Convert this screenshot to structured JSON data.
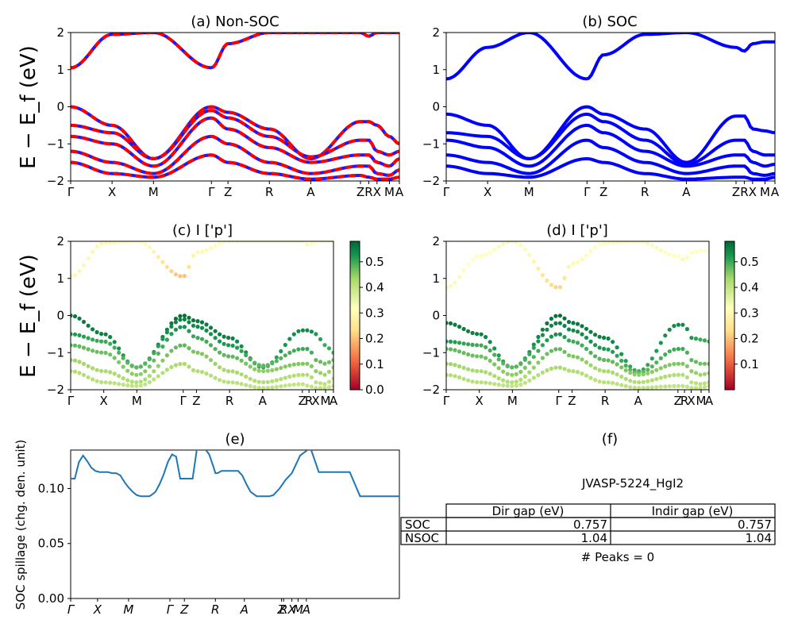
{
  "panels": {
    "a": {
      "title": "(a) Non-SOC"
    },
    "b": {
      "title": "(b) SOC"
    },
    "c": {
      "title": "(c)  I ['p']"
    },
    "d": {
      "title": "(d) I ['p']"
    },
    "e": {
      "title": "(e)"
    },
    "f": {
      "title": "(f)"
    }
  },
  "ylabel_band": "E − E_f (eV)",
  "ylabel_spillage": "SOC spillage (chg. den. unit)",
  "chart_data": [
    {
      "id": "a",
      "type": "line",
      "title": "(a) Non-SOC",
      "ylim": [
        -2,
        2
      ],
      "yticks": [
        "2",
        "1",
        "0",
        "−1",
        "−2"
      ],
      "xticks": [
        "Γ",
        "X",
        "M",
        "Γ",
        "Z",
        "R",
        "A",
        "Z",
        "R",
        "X",
        "M",
        "A"
      ],
      "x": [
        0,
        0.5,
        1.0,
        1.7,
        1.9,
        2.4,
        2.9,
        3.5,
        3.6,
        3.7,
        3.85,
        3.97
      ],
      "colors": {
        "primary": "#ff0000",
        "secondary": "#1a1aff"
      },
      "series": [
        {
          "values": [
            1.05,
            1.95,
            2.0,
            1.05,
            1.7,
            2.0,
            2.0,
            2.0,
            1.9,
            2.0,
            2.0,
            2.0
          ]
        },
        {
          "values": [
            0.0,
            -0.5,
            -1.4,
            0.0,
            -0.15,
            -0.6,
            -1.4,
            -0.4,
            -0.4,
            -0.5,
            -0.8,
            -1.0
          ]
        },
        {
          "values": [
            -0.5,
            -0.7,
            -1.4,
            -0.1,
            -0.3,
            -0.8,
            -1.35,
            -0.9,
            -0.9,
            -1.2,
            -1.3,
            -1.2
          ]
        },
        {
          "values": [
            -0.8,
            -1.0,
            -1.6,
            -0.3,
            -0.6,
            -1.1,
            -1.5,
            -1.3,
            -1.3,
            -1.5,
            -1.6,
            -1.4
          ]
        },
        {
          "values": [
            -1.2,
            -1.5,
            -1.8,
            -0.8,
            -1.0,
            -1.5,
            -1.8,
            -1.6,
            -1.6,
            -1.8,
            -1.85,
            -1.7
          ]
        },
        {
          "values": [
            -1.5,
            -1.8,
            -1.9,
            -1.3,
            -1.5,
            -1.8,
            -1.95,
            -1.85,
            -1.9,
            -1.95,
            -1.95,
            -1.9
          ]
        }
      ]
    },
    {
      "id": "b",
      "type": "line",
      "title": "(b) SOC",
      "ylim": [
        -2,
        2
      ],
      "yticks": [
        "2",
        "1",
        "0",
        "−1",
        "−2"
      ],
      "xticks": [
        "Γ",
        "X",
        "M",
        "Γ",
        "Z",
        "R",
        "A",
        "Z",
        "R",
        "X",
        "M",
        "A"
      ],
      "x": [
        0,
        0.5,
        1.0,
        1.7,
        1.9,
        2.4,
        2.9,
        3.5,
        3.6,
        3.7,
        3.85,
        3.97
      ],
      "colors": {
        "primary": "#0000ff"
      },
      "series": [
        {
          "values": [
            0.75,
            1.6,
            2.0,
            0.75,
            1.4,
            1.95,
            2.0,
            1.6,
            1.5,
            1.7,
            1.75,
            1.75
          ]
        },
        {
          "values": [
            -0.2,
            -0.5,
            -1.4,
            0.0,
            -0.2,
            -0.6,
            -1.5,
            -0.25,
            -0.25,
            -0.6,
            -0.65,
            -0.7
          ]
        },
        {
          "values": [
            -0.7,
            -0.8,
            -1.4,
            -0.2,
            -0.4,
            -0.9,
            -1.55,
            -0.9,
            -0.9,
            -1.2,
            -1.3,
            -1.3
          ]
        },
        {
          "values": [
            -0.9,
            -1.1,
            -1.6,
            -0.5,
            -0.7,
            -1.2,
            -1.6,
            -1.3,
            -1.3,
            -1.5,
            -1.6,
            -1.55
          ]
        },
        {
          "values": [
            -1.3,
            -1.5,
            -1.8,
            -0.9,
            -1.1,
            -1.5,
            -1.8,
            -1.6,
            -1.6,
            -1.8,
            -1.85,
            -1.8
          ]
        },
        {
          "values": [
            -1.6,
            -1.8,
            -1.9,
            -1.4,
            -1.5,
            -1.8,
            -1.95,
            -1.9,
            -1.9,
            -1.95,
            -1.95,
            -1.9
          ]
        }
      ]
    },
    {
      "id": "c",
      "type": "scatter",
      "title": "(c)  I ['p']",
      "ylim": [
        -2,
        2
      ],
      "yticks": [
        "2",
        "1",
        "0",
        "−1",
        "−2"
      ],
      "xticks": [
        "Γ",
        "X",
        "M",
        "Γ",
        "Z",
        "R",
        "A",
        "Z",
        "R",
        "X",
        "M",
        "A"
      ],
      "x": [
        0,
        0.5,
        1.0,
        1.7,
        1.9,
        2.4,
        2.9,
        3.5,
        3.6,
        3.7,
        3.85,
        3.97
      ],
      "colorbar": {
        "ticks": [
          "0.0",
          "0.1",
          "0.2",
          "0.3",
          "0.4",
          "0.5"
        ],
        "range": [
          0,
          0.58
        ],
        "colormap": "RdYlGn"
      },
      "series": [
        {
          "values": [
            1.05,
            1.95,
            2.0,
            1.05,
            1.7,
            2.0,
            2.0,
            2.0,
            1.9,
            2.0,
            2.0,
            2.0
          ],
          "weights": [
            0.3,
            0.3,
            0.32,
            0.2,
            0.3,
            0.32,
            0.32,
            0.32,
            0.3,
            0.32,
            0.32,
            0.32
          ]
        },
        {
          "values": [
            0.0,
            -0.5,
            -1.4,
            0.0,
            -0.15,
            -0.6,
            -1.4,
            -0.4,
            -0.4,
            -0.5,
            -0.8,
            -1.0
          ],
          "weights": [
            0.56,
            0.55,
            0.5,
            0.57,
            0.56,
            0.55,
            0.5,
            0.54,
            0.54,
            0.52,
            0.5,
            0.5
          ]
        },
        {
          "values": [
            -0.5,
            -0.7,
            -1.4,
            -0.1,
            -0.3,
            -0.8,
            -1.35,
            -0.9,
            -0.9,
            -1.2,
            -1.3,
            -1.2
          ],
          "weights": [
            0.52,
            0.5,
            0.48,
            0.55,
            0.54,
            0.52,
            0.48,
            0.5,
            0.5,
            0.48,
            0.47,
            0.47
          ]
        },
        {
          "values": [
            -0.8,
            -1.0,
            -1.6,
            -0.3,
            -0.6,
            -1.1,
            -1.5,
            -1.3,
            -1.3,
            -1.5,
            -1.6,
            -1.4
          ],
          "weights": [
            0.48,
            0.47,
            0.45,
            0.53,
            0.5,
            0.48,
            0.45,
            0.46,
            0.46,
            0.45,
            0.44,
            0.44
          ]
        },
        {
          "values": [
            -1.2,
            -1.5,
            -1.8,
            -0.8,
            -1.0,
            -1.5,
            -1.8,
            -1.6,
            -1.6,
            -1.8,
            -1.85,
            -1.7
          ],
          "weights": [
            0.44,
            0.43,
            0.42,
            0.48,
            0.46,
            0.43,
            0.42,
            0.42,
            0.42,
            0.41,
            0.41,
            0.41
          ]
        },
        {
          "values": [
            -1.5,
            -1.8,
            -1.9,
            -1.3,
            -1.5,
            -1.8,
            -1.95,
            -1.85,
            -1.9,
            -1.95,
            -1.95,
            -1.9
          ],
          "weights": [
            0.42,
            0.41,
            0.4,
            0.43,
            0.42,
            0.41,
            0.4,
            0.4,
            0.4,
            0.4,
            0.4,
            0.4
          ]
        }
      ]
    },
    {
      "id": "d",
      "type": "scatter",
      "title": "(d) I ['p']",
      "ylim": [
        -2,
        2
      ],
      "yticks": [
        "2",
        "1",
        "0",
        "−1",
        "−2"
      ],
      "xticks": [
        "Γ",
        "X",
        "M",
        "Γ",
        "Z",
        "R",
        "A",
        "Z",
        "R",
        "X",
        "M",
        "A"
      ],
      "x": [
        0,
        0.5,
        1.0,
        1.7,
        1.9,
        2.4,
        2.9,
        3.5,
        3.6,
        3.7,
        3.85,
        3.97
      ],
      "colorbar": {
        "ticks": [
          "0.1",
          "0.2",
          "0.3",
          "0.4",
          "0.5"
        ],
        "range": [
          0,
          0.58
        ],
        "colormap": "RdYlGn"
      },
      "series": [
        {
          "values": [
            0.75,
            1.6,
            2.0,
            0.75,
            1.4,
            1.95,
            2.0,
            1.6,
            1.5,
            1.7,
            1.75,
            1.75
          ],
          "weights": [
            0.3,
            0.32,
            0.33,
            0.22,
            0.3,
            0.32,
            0.33,
            0.32,
            0.3,
            0.32,
            0.32,
            0.32
          ]
        },
        {
          "values": [
            -0.2,
            -0.5,
            -1.4,
            0.0,
            -0.2,
            -0.6,
            -1.5,
            -0.25,
            -0.25,
            -0.6,
            -0.65,
            -0.7
          ],
          "weights": [
            0.56,
            0.55,
            0.5,
            0.57,
            0.56,
            0.55,
            0.5,
            0.54,
            0.54,
            0.52,
            0.5,
            0.5
          ]
        },
        {
          "values": [
            -0.7,
            -0.8,
            -1.4,
            -0.2,
            -0.4,
            -0.9,
            -1.55,
            -0.9,
            -0.9,
            -1.2,
            -1.3,
            -1.3
          ],
          "weights": [
            0.52,
            0.5,
            0.48,
            0.55,
            0.54,
            0.52,
            0.48,
            0.5,
            0.5,
            0.48,
            0.47,
            0.47
          ]
        },
        {
          "values": [
            -0.9,
            -1.1,
            -1.6,
            -0.5,
            -0.7,
            -1.2,
            -1.6,
            -1.3,
            -1.3,
            -1.5,
            -1.6,
            -1.55
          ],
          "weights": [
            0.48,
            0.47,
            0.45,
            0.53,
            0.5,
            0.48,
            0.45,
            0.46,
            0.46,
            0.45,
            0.44,
            0.44
          ]
        },
        {
          "values": [
            -1.3,
            -1.5,
            -1.8,
            -0.9,
            -1.1,
            -1.5,
            -1.8,
            -1.6,
            -1.6,
            -1.8,
            -1.85,
            -1.8
          ],
          "weights": [
            0.44,
            0.43,
            0.42,
            0.48,
            0.46,
            0.43,
            0.42,
            0.42,
            0.42,
            0.41,
            0.41,
            0.41
          ]
        },
        {
          "values": [
            -1.6,
            -1.8,
            -1.9,
            -1.4,
            -1.5,
            -1.8,
            -1.95,
            -1.9,
            -1.9,
            -1.95,
            -1.95,
            -1.9
          ],
          "weights": [
            0.42,
            0.41,
            0.4,
            0.43,
            0.42,
            0.41,
            0.4,
            0.4,
            0.4,
            0.4,
            0.4,
            0.4
          ]
        }
      ]
    },
    {
      "id": "e",
      "type": "line",
      "title": "(e)",
      "ylabel": "SOC spillage (chg. den. unit)",
      "ylim": [
        0,
        0.135
      ],
      "yticks": [
        "0.00",
        "0.05",
        "0.10"
      ],
      "xticks": [
        "Γ",
        "X",
        "M",
        "Γ",
        "Z",
        "R",
        "A",
        "Z",
        "R",
        "X",
        "M",
        "A"
      ],
      "x": [
        0,
        0.1,
        0.2,
        0.3,
        0.4,
        0.5,
        0.6,
        0.7,
        0.8,
        0.9,
        1.0,
        1.1,
        1.2,
        1.3,
        1.4,
        1.5,
        1.6,
        1.7,
        1.72,
        1.8,
        1.85,
        1.9,
        1.95,
        2.05,
        2.15,
        2.25,
        2.35,
        2.45,
        2.55,
        2.65,
        2.75,
        2.85,
        2.95,
        3.05,
        3.15,
        3.25,
        3.35,
        3.45,
        3.5,
        3.55,
        3.65,
        3.75,
        3.85,
        3.95,
        4.05,
        4.15,
        4.25,
        4.35,
        4.5,
        4.6,
        4.7,
        4.8,
        4.9,
        5.05,
        5.2,
        5.35,
        5.55,
        5.8,
        6.0,
        6.3,
        6.6,
        6.75,
        7.0,
        7.3,
        7.6,
        7.8,
        7.95
      ],
      "series": [
        {
          "name": "spillage",
          "values": [
            0.109,
            0.109,
            0.124,
            0.13,
            0.125,
            0.119,
            0.116,
            0.115,
            0.115,
            0.115,
            0.114,
            0.114,
            0.112,
            0.106,
            0.101,
            0.097,
            0.094,
            0.093,
            0.093,
            0.093,
            0.093,
            0.093,
            0.094,
            0.097,
            0.104,
            0.113,
            0.124,
            0.131,
            0.129,
            0.109,
            0.109,
            0.109,
            0.109,
            0.135,
            0.137,
            0.136,
            0.131,
            0.12,
            0.114,
            0.114,
            0.116,
            0.116,
            0.116,
            0.116,
            0.116,
            0.112,
            0.104,
            0.097,
            0.093,
            0.093,
            0.093,
            0.093,
            0.094,
            0.1,
            0.108,
            0.114,
            0.13,
            0.137,
            0.115,
            0.115,
            0.115,
            0.115,
            0.093,
            0.093,
            0.093,
            0.093,
            0.093
          ]
        }
      ]
    }
  ],
  "table": {
    "title": "JVASP-5224_HgI2",
    "headers": [
      "Dir gap (eV)",
      "Indir gap (eV)"
    ],
    "rows": [
      {
        "label": "SOC",
        "dir": "0.757",
        "indir": "0.757"
      },
      {
        "label": "NSOC",
        "dir": "1.04",
        "indir": "1.04"
      }
    ],
    "footer": "# Peaks = 0"
  }
}
